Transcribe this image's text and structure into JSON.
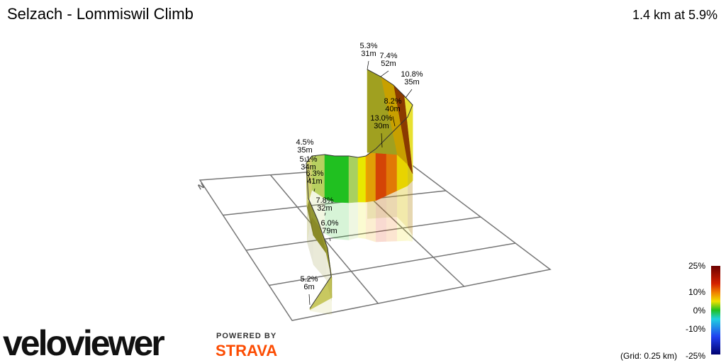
{
  "header": {
    "title": "Selzach - Lommiswil Climb",
    "summary": "1.4 km at 5.9%"
  },
  "annotations": [
    {
      "grade": "5.3%",
      "length": "31m"
    },
    {
      "grade": "7.4%",
      "length": "52m"
    },
    {
      "grade": "10.8%",
      "length": "35m"
    },
    {
      "grade": "8.2%",
      "length": "40m"
    },
    {
      "grade": "13.0%",
      "length": "30m"
    },
    {
      "grade": "4.5%",
      "length": "35m"
    },
    {
      "grade": "5.1%",
      "length": "34m"
    },
    {
      "grade": "6.3%",
      "length": "41m"
    },
    {
      "grade": "7.8%",
      "length": "32m"
    },
    {
      "grade": "6.0%",
      "length": "79m"
    },
    {
      "grade": "5.2%",
      "length": "6m"
    }
  ],
  "compass": "N",
  "color_scale": {
    "labels": [
      "25%",
      "10%",
      "0%",
      "-10%",
      "-25%"
    ],
    "grid_note": "(Grid: 0.25 km)"
  },
  "branding": {
    "logo": "veloviewer",
    "powered_by": "POWERED BY",
    "partner": "STRAVA"
  }
}
